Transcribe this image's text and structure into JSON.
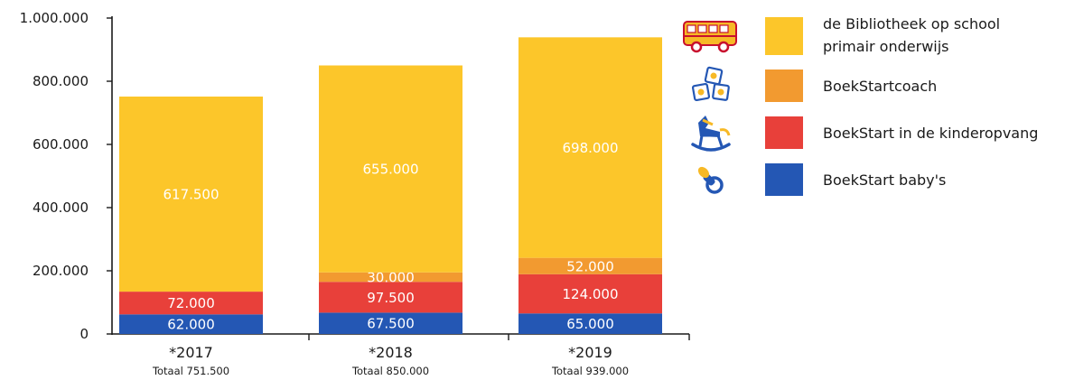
{
  "chart_data": {
    "type": "bar",
    "stacked": true,
    "categories": [
      "*2017",
      "*2018",
      "*2019"
    ],
    "totals": [
      "Totaal 751.500",
      "Totaal 850.000",
      "Totaal 939.000"
    ],
    "series": [
      {
        "name": "BoekStart baby's",
        "color": "#2457b4",
        "icon": "pacifier-icon",
        "values": [
          62000,
          67500,
          65000
        ],
        "labels": [
          "62.000",
          "67.500",
          "65.000"
        ]
      },
      {
        "name": "BoekStart in de kinderopvang",
        "color": "#e8403a",
        "icon": "rocking-horse-icon",
        "values": [
          72000,
          97500,
          124000
        ],
        "labels": [
          "72.000",
          "97.500",
          "124.000"
        ]
      },
      {
        "name": "BoekStartcoach",
        "color": "#f29a30",
        "icon": "toy-blocks-icon",
        "values": [
          0,
          30000,
          52000
        ],
        "labels": [
          null,
          "30.000",
          "52.000"
        ]
      },
      {
        "name": "de Bibliotheek op school primair onderwijs",
        "name_lines": [
          "de Bibliotheek op school",
          "primair onderwijs"
        ],
        "color": "#fcc62a",
        "icon": "school-bus-icon",
        "values": [
          617500,
          655000,
          698000
        ],
        "labels": [
          "617.500",
          "655.000",
          "698.000"
        ]
      }
    ],
    "yticks": [
      0,
      200000,
      400000,
      600000,
      800000,
      1000000
    ],
    "ytick_labels": [
      "0",
      "200.000",
      "400.000",
      "600.000",
      "800.000",
      "1.000.000"
    ],
    "ylim": [
      0,
      1000000
    ],
    "legend_position": "right",
    "grid": false
  }
}
